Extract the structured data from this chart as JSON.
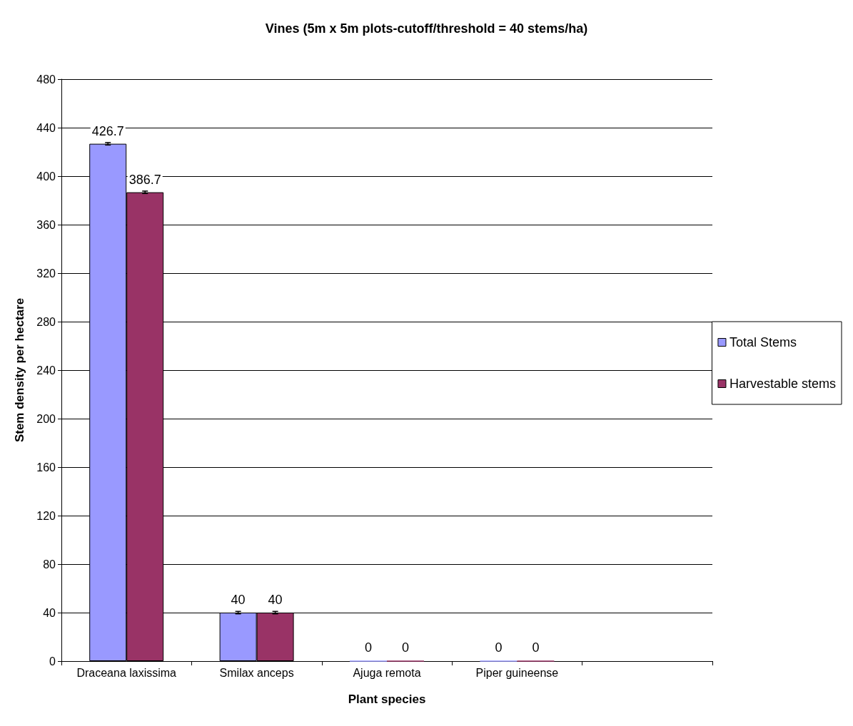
{
  "chart_data": {
    "type": "bar",
    "title": "Vines (5m x 5m plots-cutoff/threshold = 40 stems/ha)",
    "xlabel": "Plant species",
    "ylabel": "Stem density per hectare",
    "categories": [
      "Draceana laxissima",
      "Smilax anceps",
      "Ajuga remota",
      "Piper guineense",
      null
    ],
    "series": [
      {
        "name": "Total Stems",
        "color": "#9999ff",
        "values": [
          426.7,
          40,
          0,
          0,
          null
        ],
        "errors": [
          1,
          1,
          null,
          null,
          null
        ]
      },
      {
        "name": "Harvestable stems",
        "color": "#993366",
        "values": [
          386.7,
          40,
          0,
          0,
          null
        ],
        "errors": [
          1,
          1,
          null,
          null,
          null
        ]
      }
    ],
    "ylim": [
      0,
      480
    ],
    "yticks": [
      0,
      40,
      80,
      120,
      160,
      200,
      240,
      280,
      320,
      360,
      400,
      440,
      480
    ],
    "grid": "y",
    "legend": "right",
    "data_labels": true
  }
}
